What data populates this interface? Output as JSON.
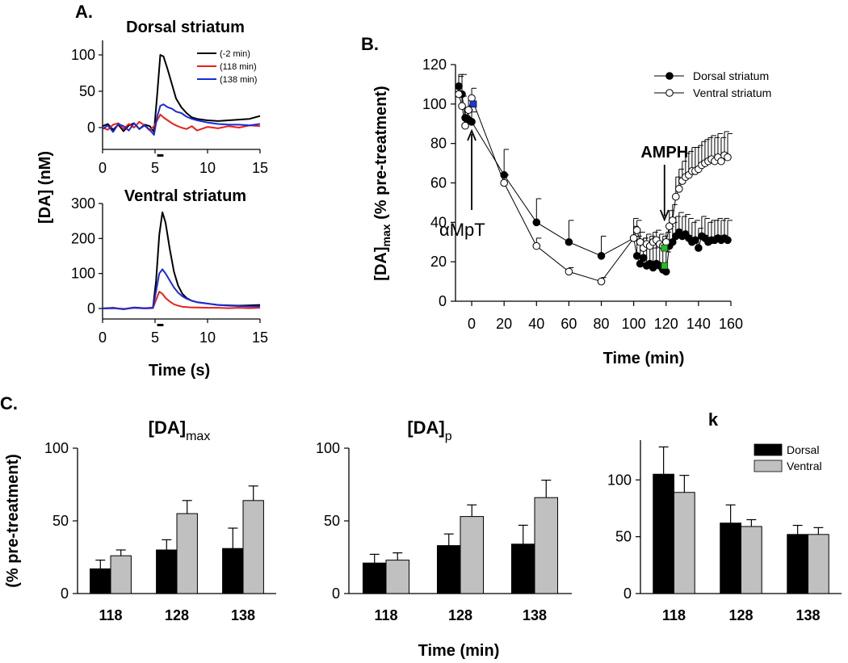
{
  "panel_labels": {
    "a": "A.",
    "b": "B.",
    "c": "C."
  },
  "shared": {
    "a_ylabel": "[DA] (nM)",
    "a_xlabel": "Time (s)",
    "b_ylabel_main": "[DA]",
    "b_ylabel_sub": "max",
    "b_ylabel_rest": " (% pre-treatment)",
    "b_xlabel": "Time (min)",
    "c_ylabel": "(% pre-treatment)",
    "c_xlabel": "Time (min)",
    "annotation_ampt": "αMpT",
    "annotation_amph": "AMPH",
    "c1_title_main": "[DA]",
    "c1_title_sub": "max",
    "c2_title_main": "[DA]",
    "c2_title_sub": "p",
    "c3_title": "k"
  },
  "colors": {
    "black": "#000000",
    "red": "#e8201a",
    "blue": "#1a2bd6",
    "gray": "#c0c0c0",
    "green": "#22c022",
    "marker_blue": "#1a3acc"
  },
  "chart_data": [
    {
      "id": "a_dorsal",
      "type": "line",
      "title": "Dorsal striatum",
      "xlabel": "",
      "ylabel": "",
      "xlim": [
        0,
        15
      ],
      "ylim": [
        -30,
        120
      ],
      "xticks": [
        0,
        5,
        10,
        15
      ],
      "yticks": [
        0,
        50,
        100
      ],
      "stim_bar": [
        5.2,
        5.8
      ],
      "series": [
        {
          "name": "(-2 min)",
          "color": "#000000",
          "x": [
            0,
            0.5,
            1,
            1.5,
            2,
            2.5,
            3,
            3.5,
            4,
            4.5,
            4.9,
            5.2,
            5.5,
            5.8,
            6.2,
            6.6,
            7,
            7.5,
            8,
            8.5,
            9,
            10,
            11,
            12,
            13,
            14,
            15
          ],
          "y": [
            2,
            5,
            -3,
            4,
            -5,
            3,
            6,
            -2,
            4,
            2,
            -6,
            45,
            100,
            98,
            80,
            60,
            40,
            28,
            20,
            14,
            12,
            10,
            9,
            10,
            11,
            12,
            16
          ]
        },
        {
          "name": "(118 min)",
          "color": "#e8201a",
          "x": [
            0,
            0.5,
            1,
            1.5,
            2,
            2.5,
            3,
            3.5,
            4,
            4.5,
            4.9,
            5.2,
            5.5,
            5.8,
            6.2,
            6.6,
            7,
            7.5,
            8,
            8.5,
            9,
            10,
            11,
            12,
            13,
            14,
            15
          ],
          "y": [
            0,
            -3,
            4,
            6,
            -2,
            5,
            0,
            8,
            3,
            -4,
            2,
            10,
            18,
            14,
            10,
            6,
            3,
            0,
            -2,
            2,
            -4,
            1,
            -1,
            2,
            0,
            3,
            2
          ]
        },
        {
          "name": "(138 min)",
          "color": "#1a2bd6",
          "x": [
            0,
            0.5,
            1,
            1.5,
            2,
            2.5,
            3,
            3.5,
            4,
            4.5,
            4.9,
            5.2,
            5.5,
            5.8,
            6.2,
            6.6,
            7,
            7.5,
            8,
            8.5,
            9,
            10,
            11,
            12,
            13,
            14,
            15
          ],
          "y": [
            -2,
            3,
            -6,
            5,
            2,
            -4,
            6,
            -2,
            3,
            -3,
            -10,
            15,
            30,
            32,
            28,
            26,
            22,
            20,
            15,
            12,
            10,
            7,
            5,
            4,
            4,
            3,
            5
          ]
        }
      ]
    },
    {
      "id": "a_ventral",
      "type": "line",
      "title": "Ventral striatum",
      "xlabel": "",
      "ylabel": "",
      "xlim": [
        0,
        15
      ],
      "ylim": [
        -30,
        300
      ],
      "xticks": [
        0,
        5,
        10,
        15
      ],
      "yticks": [
        0,
        100,
        200,
        300
      ],
      "stim_bar": [
        5.2,
        5.8
      ],
      "series": [
        {
          "name": "(-2 min)",
          "color": "#000000",
          "x": [
            0,
            1,
            2,
            3,
            4,
            4.8,
            5.1,
            5.4,
            5.7,
            6,
            6.4,
            6.8,
            7.2,
            7.6,
            8,
            8.5,
            9,
            10,
            11,
            12,
            13,
            14,
            15
          ],
          "y": [
            0,
            2,
            -2,
            3,
            1,
            2,
            80,
            210,
            275,
            245,
            170,
            105,
            65,
            42,
            30,
            22,
            18,
            14,
            10,
            9,
            8,
            9,
            10
          ]
        },
        {
          "name": "(118 min)",
          "color": "#e8201a",
          "x": [
            0,
            1,
            2,
            3,
            4,
            4.8,
            5.1,
            5.4,
            5.7,
            6,
            6.4,
            6.8,
            7.2,
            7.6,
            8,
            8.5,
            9,
            10,
            11,
            12,
            13,
            14,
            15
          ],
          "y": [
            0,
            1,
            -1,
            2,
            0,
            1,
            25,
            48,
            42,
            30,
            20,
            12,
            8,
            5,
            4,
            3,
            3,
            2,
            2,
            1,
            2,
            1,
            2
          ]
        },
        {
          "name": "(138 min)",
          "color": "#1a2bd6",
          "x": [
            0,
            1,
            2,
            3,
            4,
            4.8,
            5.1,
            5.4,
            5.7,
            6,
            6.4,
            6.8,
            7.2,
            7.6,
            8,
            8.5,
            9,
            10,
            11,
            12,
            13,
            14,
            15
          ],
          "y": [
            0,
            1,
            -2,
            2,
            1,
            2,
            50,
            100,
            112,
            100,
            80,
            60,
            45,
            35,
            28,
            22,
            18,
            14,
            10,
            8,
            7,
            6,
            6
          ]
        }
      ]
    },
    {
      "id": "b_timecourse",
      "type": "scatter",
      "title": "",
      "xlabel": "Time (min)",
      "ylabel": "[DA]max (% pre-treatment)",
      "xlim": [
        -10,
        160
      ],
      "ylim": [
        0,
        120
      ],
      "xticks": [
        0,
        20,
        40,
        60,
        80,
        100,
        120,
        140,
        160
      ],
      "yticks": [
        0,
        20,
        40,
        60,
        80,
        100,
        120
      ],
      "legend": "top-right",
      "series": [
        {
          "name": "Dorsal striatum",
          "marker": "filled",
          "x": [
            -8,
            -6,
            -4,
            -2,
            0,
            20,
            40,
            60,
            80,
            100,
            102,
            104,
            106,
            108,
            110,
            112,
            114,
            116,
            118,
            120,
            122,
            124,
            126,
            128,
            130,
            132,
            134,
            136,
            138,
            140,
            142,
            144,
            146,
            148,
            150,
            152,
            154,
            156,
            158
          ],
          "y": [
            109,
            105,
            93,
            92,
            91,
            64,
            40,
            30,
            23,
            32,
            23,
            19,
            22,
            18,
            19,
            17,
            19,
            18,
            16,
            15,
            28,
            30,
            33,
            35,
            33,
            34,
            32,
            30,
            31,
            27,
            33,
            32,
            30,
            31,
            31,
            32,
            31,
            32,
            31
          ],
          "err": [
            5,
            10,
            5,
            5,
            5,
            13,
            12,
            11,
            10,
            10,
            10,
            10,
            10,
            10,
            10,
            10,
            10,
            10,
            10,
            10,
            10,
            10,
            10,
            10,
            10,
            10,
            10,
            10,
            10,
            10,
            10,
            10,
            10,
            10,
            10,
            10,
            10,
            10,
            10
          ]
        },
        {
          "name": "Ventral striatum",
          "marker": "open",
          "x": [
            -8,
            -6,
            -4,
            -2,
            0,
            20,
            40,
            60,
            80,
            100,
            102,
            104,
            106,
            108,
            110,
            112,
            114,
            116,
            118,
            120,
            122,
            124,
            126,
            128,
            130,
            132,
            134,
            136,
            138,
            140,
            142,
            144,
            146,
            148,
            150,
            152,
            154,
            156,
            158
          ],
          "y": [
            105,
            99,
            89,
            97,
            103,
            60,
            28,
            15,
            10,
            32,
            36,
            30,
            27,
            29,
            28,
            30,
            31,
            29,
            28,
            30,
            38,
            41,
            53,
            57,
            61,
            63,
            64,
            66,
            66,
            67,
            69,
            70,
            71,
            72,
            71,
            73,
            71,
            74,
            73
          ],
          "err": [
            10,
            5,
            5,
            5,
            5,
            4,
            4,
            2,
            2,
            6,
            5,
            5,
            5,
            5,
            5,
            5,
            5,
            5,
            5,
            5,
            8,
            8,
            10,
            10,
            10,
            12,
            12,
            12,
            12,
            12,
            12,
            12,
            12,
            12,
            12,
            12,
            12,
            12,
            12
          ]
        }
      ],
      "highlight_points": [
        {
          "x": 1,
          "y": 100,
          "color": "blue"
        },
        {
          "x": 119,
          "y": 27,
          "color": "green"
        },
        {
          "x": 119,
          "y": 18,
          "color": "green"
        }
      ],
      "annotations": [
        {
          "text": "αMpT",
          "x_target": 0,
          "y_target": 86
        },
        {
          "text": "AMPH",
          "x_target": 119,
          "y_target": 38
        }
      ]
    },
    {
      "id": "c_damax",
      "type": "bar",
      "title": "[DA]max",
      "categories": [
        "118",
        "128",
        "138"
      ],
      "ylim": [
        0,
        100
      ],
      "yticks": [
        0,
        50,
        100
      ],
      "series": [
        {
          "name": "Dorsal",
          "color": "#000000",
          "values": [
            17,
            30,
            31
          ],
          "err": [
            6,
            7,
            14
          ]
        },
        {
          "name": "Ventral",
          "color": "#c0c0c0",
          "values": [
            26,
            55,
            64
          ],
          "err": [
            4,
            9,
            10
          ]
        }
      ]
    },
    {
      "id": "c_dap",
      "type": "bar",
      "title": "[DA]p",
      "categories": [
        "118",
        "128",
        "138"
      ],
      "ylim": [
        0,
        100
      ],
      "yticks": [
        0,
        50,
        100
      ],
      "series": [
        {
          "name": "Dorsal",
          "color": "#000000",
          "values": [
            21,
            33,
            34
          ],
          "err": [
            6,
            8,
            13
          ]
        },
        {
          "name": "Ventral",
          "color": "#c0c0c0",
          "values": [
            23,
            53,
            66
          ],
          "err": [
            5,
            8,
            12
          ]
        }
      ]
    },
    {
      "id": "c_k",
      "type": "bar",
      "title": "k",
      "categories": [
        "118",
        "128",
        "138"
      ],
      "ylim": [
        0,
        135
      ],
      "yticks": [
        0,
        50,
        100
      ],
      "legend": "top-right",
      "series": [
        {
          "name": "Dorsal",
          "color": "#000000",
          "values": [
            105,
            62,
            52
          ],
          "err": [
            24,
            16,
            8
          ]
        },
        {
          "name": "Ventral",
          "color": "#c0c0c0",
          "values": [
            89,
            59,
            52
          ],
          "err": [
            15,
            6,
            6
          ]
        }
      ]
    }
  ]
}
